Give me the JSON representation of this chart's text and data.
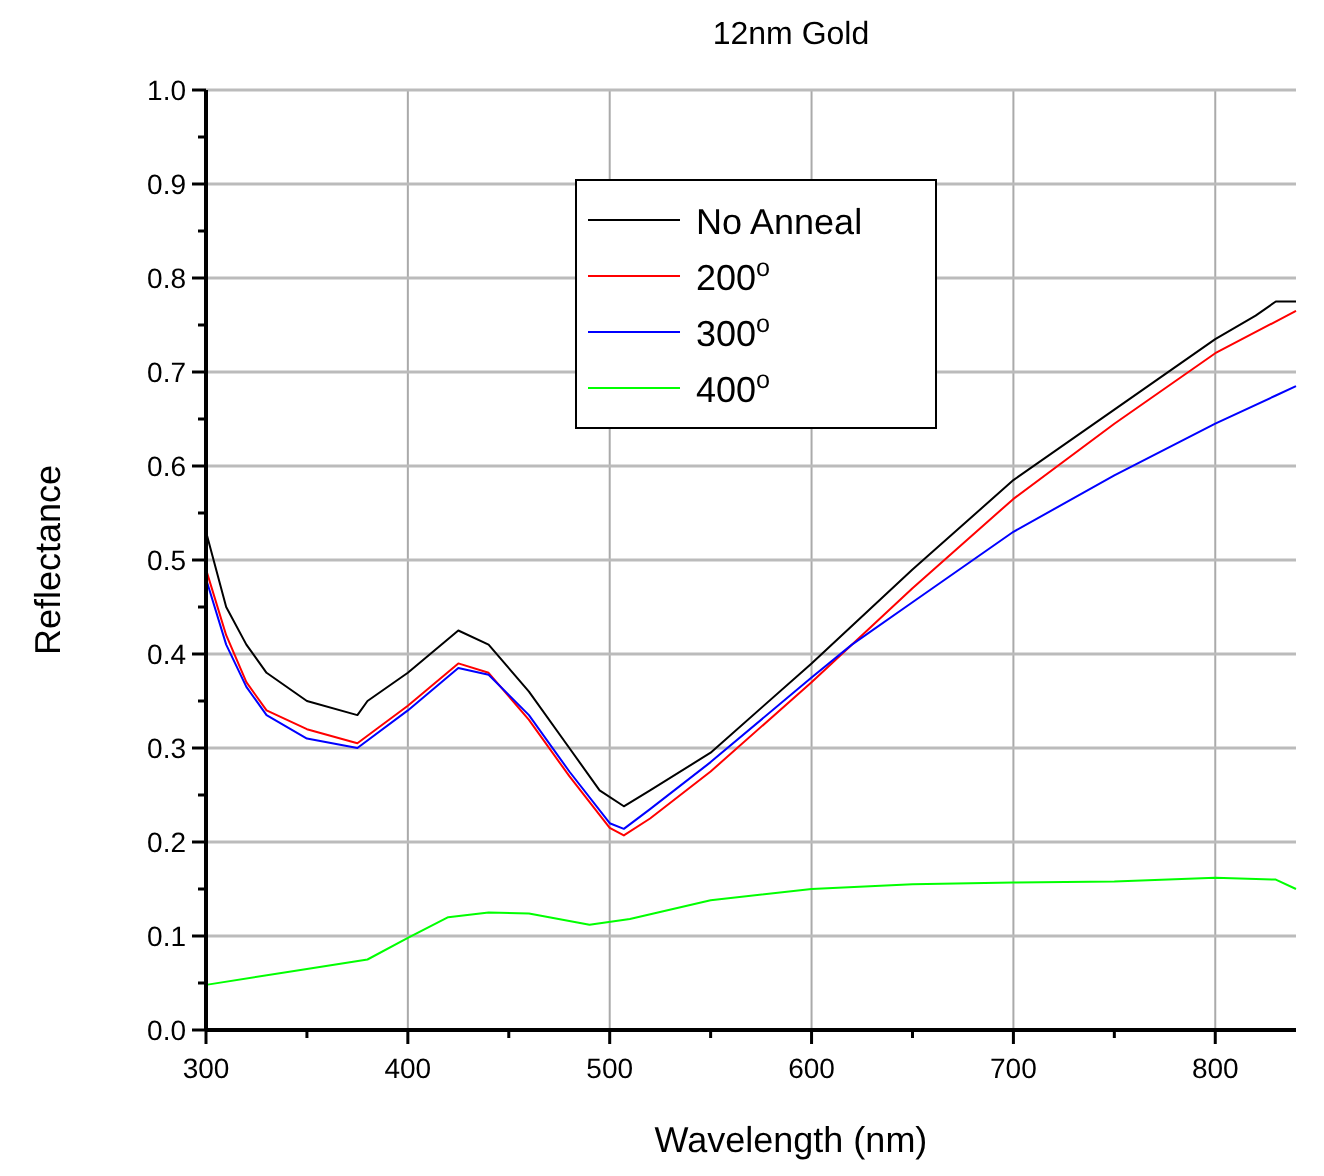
{
  "chart_data": {
    "type": "line",
    "title": "12nm Gold",
    "xlabel": "Wavelength (nm)",
    "ylabel": "Reflectance",
    "xlim": [
      300,
      840
    ],
    "xticks": [
      300,
      {
        "value": 350,
        "label": null
      },
      400,
      {
        "value": 450,
        "label": null
      },
      500,
      {
        "value": 550,
        "label": null
      },
      600,
      {
        "value": 650,
        "label": null
      },
      700,
      {
        "value": 750,
        "label": null
      },
      800
    ],
    "ylim": [
      0,
      1
    ],
    "yticks": [
      {
        "value": 0,
        "label": "0.0"
      },
      {
        "value": 0.05,
        "label": null
      },
      0.1,
      {
        "value": 0.15,
        "label": null
      },
      0.2,
      {
        "value": 0.25,
        "label": null
      },
      0.3,
      {
        "value": 0.35,
        "label": null
      },
      0.4,
      {
        "value": 0.45,
        "label": null
      },
      0.5,
      {
        "value": 0.55,
        "label": null
      },
      0.6,
      {
        "value": 0.65,
        "label": null
      },
      0.7,
      {
        "value": 0.75,
        "label": null
      },
      0.8,
      {
        "value": 0.85,
        "label": null
      },
      0.9,
      {
        "value": 0.95,
        "label": null
      },
      {
        "value": 1,
        "label": "1.0"
      }
    ],
    "grid": true,
    "legend": "top",
    "line_style": "solid",
    "marker": "none",
    "series": [
      {
        "name": "No Anneal",
        "color": "#000000",
        "x": [
          300,
          310,
          320,
          330,
          350,
          375,
          380,
          400,
          425,
          440,
          460,
          480,
          495,
          507,
          520,
          550,
          600,
          650,
          700,
          750,
          800,
          820,
          830,
          840
        ],
        "values": [
          0.53,
          0.45,
          0.41,
          0.38,
          0.35,
          0.335,
          0.35,
          0.38,
          0.425,
          0.41,
          0.36,
          0.3,
          0.255,
          0.238,
          0.255,
          0.295,
          0.39,
          0.49,
          0.585,
          0.66,
          0.735,
          0.76,
          0.775,
          0.775
        ]
      },
      {
        "name": "200$^{o}$",
        "color": "#ff0000",
        "x": [
          300,
          310,
          320,
          330,
          350,
          375,
          400,
          425,
          440,
          460,
          480,
          500,
          507,
          520,
          550,
          600,
          650,
          700,
          750,
          800,
          840
        ],
        "values": [
          0.49,
          0.42,
          0.37,
          0.34,
          0.32,
          0.305,
          0.345,
          0.39,
          0.38,
          0.33,
          0.27,
          0.215,
          0.207,
          0.225,
          0.275,
          0.37,
          0.47,
          0.565,
          0.645,
          0.72,
          0.765
        ]
      },
      {
        "name": "300$^{o}$",
        "color": "#0000ff",
        "x": [
          300,
          310,
          320,
          330,
          350,
          375,
          400,
          425,
          440,
          460,
          480,
          500,
          507,
          520,
          550,
          600,
          620,
          650,
          700,
          750,
          800,
          830,
          840
        ],
        "values": [
          0.48,
          0.41,
          0.365,
          0.335,
          0.31,
          0.3,
          0.34,
          0.385,
          0.378,
          0.335,
          0.275,
          0.22,
          0.214,
          0.235,
          0.285,
          0.375,
          0.41,
          0.455,
          0.53,
          0.59,
          0.645,
          0.675,
          0.685
        ]
      },
      {
        "name": "400$^{o}$",
        "color": "#00ff00",
        "x": [
          300,
          350,
          380,
          400,
          420,
          440,
          460,
          490,
          510,
          550,
          600,
          650,
          700,
          750,
          800,
          830,
          840
        ],
        "values": [
          0.048,
          0.065,
          0.075,
          0.098,
          0.12,
          0.125,
          0.124,
          0.112,
          0.118,
          0.138,
          0.15,
          0.155,
          0.157,
          0.158,
          0.162,
          0.16,
          0.15
        ]
      }
    ]
  }
}
